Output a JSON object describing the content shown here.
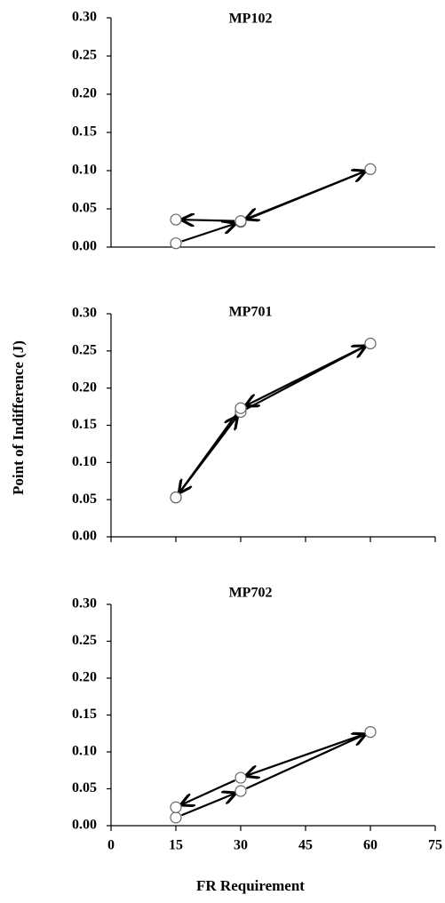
{
  "chart_data": [
    {
      "type": "line",
      "title": "MP102",
      "x": [
        15,
        30,
        60,
        30,
        15
      ],
      "values": [
        0.005,
        0.033,
        0.102,
        0.034,
        0.036
      ],
      "xlim": [
        0,
        75
      ],
      "ylim": [
        0,
        0.3
      ],
      "yticks": [
        {
          "value": 0,
          "label": "0.00"
        },
        {
          "value": 0.05,
          "label": "0.05"
        },
        {
          "value": 0.1,
          "label": "0.10"
        },
        {
          "value": 0.15,
          "label": "0.15"
        },
        {
          "value": 0.2,
          "label": "0.20"
        },
        {
          "value": 0.25,
          "label": "0.25"
        },
        {
          "value": 0.3,
          "label": "0.30"
        }
      ]
    },
    {
      "type": "line",
      "title": "MP701",
      "ylabel": "Point of Indifference (J)",
      "x": [
        15,
        30,
        60,
        30,
        15
      ],
      "values": [
        0.053,
        0.168,
        0.26,
        0.173,
        0.053
      ],
      "xlim": [
        0,
        75
      ],
      "ylim": [
        0,
        0.3
      ],
      "xticks": [
        0,
        15,
        30,
        45,
        60,
        75
      ],
      "xtick_labels": false,
      "yticks": [
        {
          "value": 0,
          "label": "0.00"
        },
        {
          "value": 0.05,
          "label": "0.05"
        },
        {
          "value": 0.1,
          "label": "0.10"
        },
        {
          "value": 0.15,
          "label": "0.15"
        },
        {
          "value": 0.2,
          "label": "0.20"
        },
        {
          "value": 0.25,
          "label": "0.25"
        },
        {
          "value": 0.3,
          "label": "0.30"
        }
      ]
    },
    {
      "type": "line",
      "title": "MP702",
      "xlabel": "FR Requirement",
      "x": [
        15,
        30,
        60,
        30,
        15
      ],
      "values": [
        0.011,
        0.047,
        0.127,
        0.065,
        0.025
      ],
      "xlim": [
        0,
        75
      ],
      "ylim": [
        0,
        0.3
      ],
      "xticks": [
        0,
        15,
        30,
        45,
        60,
        75
      ],
      "xtick_labels": true,
      "yticks": [
        {
          "value": 0,
          "label": "0.00"
        },
        {
          "value": 0.05,
          "label": "0.05"
        },
        {
          "value": 0.1,
          "label": "0.10"
        },
        {
          "value": 0.15,
          "label": "0.15"
        },
        {
          "value": 0.2,
          "label": "0.20"
        },
        {
          "value": 0.25,
          "label": "0.25"
        },
        {
          "value": 0.3,
          "label": "0.30"
        }
      ]
    }
  ]
}
